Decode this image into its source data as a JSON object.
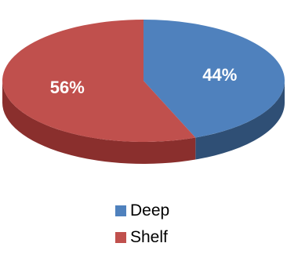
{
  "chart_data": {
    "type": "pie",
    "style": "3d",
    "categories": [
      "Deep",
      "Shelf"
    ],
    "values": [
      44,
      56
    ],
    "data_labels": [
      "44%",
      "56%"
    ],
    "colors": [
      "#4f81bd",
      "#c0504d"
    ],
    "side_colors": [
      "#2f4f75",
      "#8a2f2d"
    ],
    "legend": "bottom",
    "title": ""
  }
}
